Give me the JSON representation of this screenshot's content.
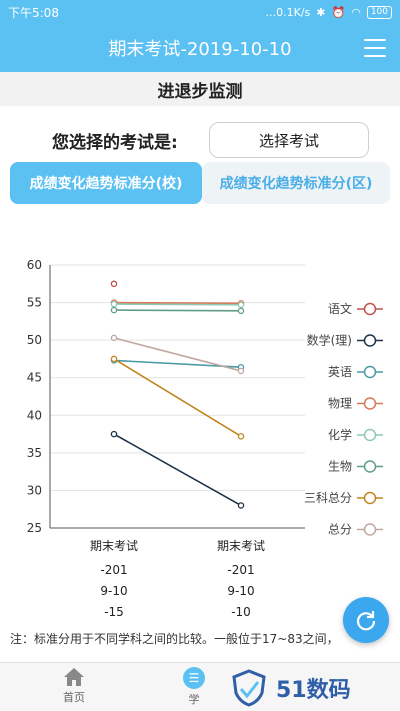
{
  "status_bar": {
    "time": "下午5:08",
    "network": "...0.1K/s",
    "battery": "100"
  },
  "header": {
    "title": "期末考试-2019-10-10"
  },
  "page_title": "进退步监测",
  "exam_selector": {
    "label": "您选择的考试是:",
    "button_label": "选择考试"
  },
  "tabs": [
    {
      "label": "成绩变化趋势标准分(校)",
      "active": true
    },
    {
      "label": "成绩变化趋势标准分(区)",
      "active": false
    }
  ],
  "chart_data": {
    "type": "line",
    "ylim": [
      25,
      60
    ],
    "yticks": [
      "60",
      "55",
      "50",
      "45",
      "40",
      "35",
      "30",
      "25"
    ],
    "categories": [
      {
        "name": "期末考试",
        "lines": [
          "-201",
          "9-10",
          "-15"
        ]
      },
      {
        "name": "期末考试",
        "lines": [
          "-201",
          "9-10",
          "-10"
        ]
      }
    ],
    "series": [
      {
        "name": "语文",
        "color": "#c0504d",
        "values": [
          57.5,
          null
        ]
      },
      {
        "name": "数学(理)",
        "color": "#1f3347",
        "values": [
          37.5,
          28
        ]
      },
      {
        "name": "英语",
        "color": "#4a9aa5",
        "values": [
          47.3,
          46.4
        ]
      },
      {
        "name": "物理",
        "color": "#d9785a",
        "values": [
          55,
          54.9
        ]
      },
      {
        "name": "化学",
        "color": "#8fc9b0",
        "values": [
          54.8,
          54.7
        ]
      },
      {
        "name": "生物",
        "color": "#5f9e86",
        "values": [
          54,
          53.9
        ]
      },
      {
        "name": "三科总分",
        "color": "#c2861e",
        "values": [
          47.5,
          37.2
        ]
      },
      {
        "name": "总分",
        "color": "#c0a8a0",
        "values": [
          50.3,
          45.9
        ]
      }
    ]
  },
  "note": "注：标准分用于不同学科之间的比较。一般位于17~83之间，",
  "bottom_nav": {
    "home": "首页",
    "study": "学"
  },
  "watermark": {
    "brand": "51数码"
  }
}
